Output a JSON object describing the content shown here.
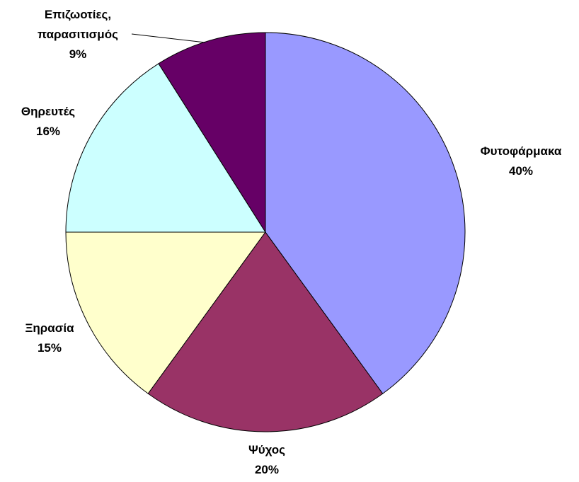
{
  "chart_data": {
    "type": "pie",
    "categories": [
      "Φυτοφάρμακα",
      "Ψύχος",
      "Ξηρασία",
      "Θηρευτές",
      "Επιζωοτίες, παρασιτισμός"
    ],
    "values": [
      40,
      20,
      15,
      16,
      9
    ],
    "value_labels": [
      "40%",
      "20%",
      "15%",
      "16%",
      "9%"
    ],
    "colors": [
      "#9999ff",
      "#993366",
      "#ffffcc",
      "#ccffff",
      "#660066"
    ]
  }
}
